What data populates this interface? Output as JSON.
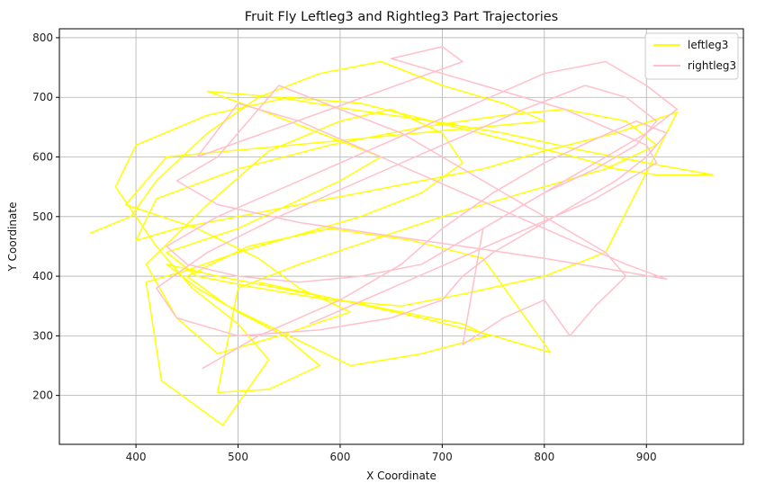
{
  "chart_data": {
    "type": "line",
    "title": "Fruit Fly Leftleg3 and Rightleg3 Part Trajectories",
    "xlabel": "X Coordinate",
    "ylabel": "Y Coordinate",
    "xlim": [
      325,
      995
    ],
    "ylim": [
      118,
      815
    ],
    "xticks": [
      400,
      500,
      600,
      700,
      800,
      900
    ],
    "yticks": [
      200,
      300,
      400,
      500,
      600,
      700,
      800
    ],
    "grid": true,
    "legend_position": "top-right",
    "series": [
      {
        "name": "leftleg3",
        "color": "#ffff00",
        "x": [
          355,
          395,
          420,
          470,
          520,
          580,
          640,
          700,
          760,
          800,
          430,
          390,
          460,
          520,
          560,
          610,
          540,
          480,
          440,
          410,
          470,
          530,
          600,
          650,
          700,
          720,
          680,
          620,
          560,
          500,
          450,
          410,
          425,
          485,
          530,
          500,
          455,
          420,
          380,
          400,
          470,
          550,
          620,
          690,
          760,
          830,
          870,
          910,
          965,
          900,
          840,
          760,
          690,
          610,
          540,
          470,
          520,
          580,
          640,
          600,
          550,
          500,
          430,
          460,
          520,
          590,
          660,
          720,
          800,
          860,
          930,
          870,
          800,
          740,
          680,
          620,
          560,
          500,
          440,
          400,
          420,
          500,
          590,
          680,
          760,
          820,
          880,
          910,
          860,
          780,
          700,
          630,
          560,
          500,
          480,
          530,
          580,
          545,
          500,
          460,
          430,
          480,
          540,
          600,
          660,
          720,
          745,
          680,
          610,
          550,
          490,
          450,
          510,
          590,
          670,
          740,
          806,
          750,
          680,
          600,
          520
        ],
        "y": [
          472,
          500,
          560,
          640,
          700,
          740,
          760,
          720,
          690,
          660,
          600,
          520,
          480,
          430,
          380,
          340,
          300,
          270,
          330,
          420,
          520,
          610,
          660,
          680,
          640,
          590,
          540,
          500,
          470,
          440,
          410,
          390,
          225,
          150,
          260,
          320,
          380,
          450,
          550,
          620,
          670,
          700,
          690,
          660,
          630,
          600,
          580,
          570,
          570,
          590,
          610,
          640,
          660,
          680,
          700,
          710,
          680,
          640,
          600,
          560,
          520,
          480,
          440,
          400,
          380,
          360,
          350,
          370,
          400,
          440,
          675,
          640,
          610,
          580,
          560,
          540,
          520,
          500,
          480,
          460,
          530,
          580,
          620,
          650,
          670,
          680,
          660,
          620,
          580,
          540,
          500,
          460,
          420,
          380,
          205,
          210,
          250,
          300,
          340,
          380,
          420,
          400,
          380,
          360,
          340,
          320,
          300,
          270,
          250,
          300,
          350,
          400,
          450,
          480,
          460,
          430,
          272,
          300,
          330,
          360,
          390
        ]
      },
      {
        "name": "rightleg3",
        "color": "#ffc0cb",
        "x": [
          465,
          520,
          600,
          660,
          700,
          750,
          800,
          850,
          890,
          920,
          900,
          870,
          830,
          790,
          750,
          720,
          700,
          650,
          580,
          500,
          440,
          420,
          470,
          540,
          620,
          700,
          780,
          840,
          880,
          910,
          890,
          850,
          800,
          760,
          720,
          680,
          620,
          560,
          500,
          450,
          430,
          480,
          560,
          640,
          720,
          800,
          860,
          900,
          930,
          900,
          860,
          820,
          780,
          740,
          720,
          760,
          800,
          825,
          850,
          880,
          860,
          820,
          780,
          740,
          700,
          660,
          600,
          540,
          480,
          440,
          480,
          560,
          640,
          720,
          800,
          870,
          920,
          880,
          840,
          800,
          760,
          720,
          680,
          640,
          600,
          560,
          500,
          460,
          720,
          700,
          650,
          700,
          760,
          820,
          860,
          900,
          910,
          880,
          850,
          810,
          770,
          730,
          690,
          650,
          610,
          570
        ],
        "y": [
          245,
          300,
          360,
          420,
          480,
          540,
          590,
          630,
          660,
          640,
          600,
          560,
          520,
          480,
          440,
          400,
          360,
          330,
          310,
          300,
          330,
          380,
          440,
          500,
          560,
          620,
          680,
          720,
          700,
          660,
          620,
          580,
          540,
          500,
          460,
          420,
          400,
          390,
          400,
          420,
          450,
          500,
          560,
          620,
          680,
          740,
          760,
          720,
          680,
          640,
          600,
          560,
          520,
          480,
          285,
          330,
          360,
          300,
          350,
          400,
          440,
          480,
          520,
          560,
          600,
          640,
          680,
          720,
          600,
          560,
          520,
          490,
          470,
          450,
          430,
          410,
          395,
          420,
          450,
          480,
          510,
          540,
          570,
          600,
          630,
          660,
          690,
          600,
          760,
          785,
          765,
          740,
          710,
          680,
          650,
          620,
          590,
          560,
          530,
          500,
          470,
          440,
          410,
          380,
          350,
          320
        ]
      }
    ]
  }
}
